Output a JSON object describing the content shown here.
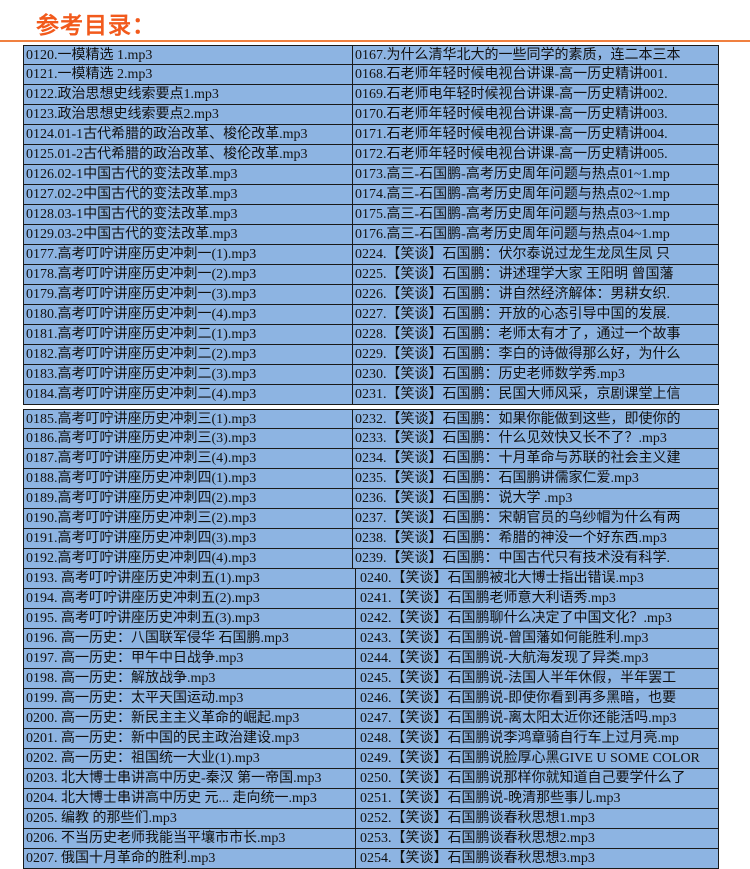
{
  "title": "参考目录：",
  "colors": {
    "cell_bg": "#8db4e2",
    "title": "#f25a1c"
  },
  "blocks": [
    {
      "left": [
        "0120.一模精选 1.mp3",
        "0121.一模精选 2.mp3",
        "0122.政治思想史线索要点1.mp3",
        "0123.政治思想史线索要点2.mp3",
        "0124.01-1古代希腊的政治改革、梭伦改革.mp3",
        "0125.01-2古代希腊的政治改革、梭伦改革.mp3",
        "0126.02-1中国古代的变法改革.mp3",
        "0127.02-2中国古代的变法改革.mp3",
        "0128.03-1中国古代的变法改革.mp3",
        "0129.03-2中国古代的变法改革.mp3",
        "0177.高考叮咛讲座历史冲刺一(1).mp3",
        "0178.高考叮咛讲座历史冲刺一(2).mp3",
        "0179.高考叮咛讲座历史冲刺一(3).mp3",
        "0180.高考叮咛讲座历史冲刺一(4).mp3",
        "0181.高考叮咛讲座历史冲刺二(1).mp3",
        "0182.高考叮咛讲座历史冲刺二(2).mp3",
        "0183.高考叮咛讲座历史冲刺二(3).mp3",
        "0184.高考叮咛讲座历史冲刺二(4).mp3"
      ],
      "right": [
        "0167.为什么清华北大的一些同学的素质，连二本三本",
        "0168.石老师年轻时候电视台讲课-高一历史精讲001.",
        "0169.石老师电年轻时候视台讲课-高一历史精讲002.",
        "0170.石老师年轻时候电视台讲课-高一历史精讲003.",
        "0171.石老师年轻时候电视台讲课-高一历史精讲004.",
        "0172.石老师年轻时候电视台讲课-高一历史精讲005.",
        "0173.高三-石国鹏-高考历史周年问题与热点01~1.mp",
        "0174.高三-石国鹏-高考历史周年问题与热点02~1.mp",
        "0175.高三-石国鹏-高考历史周年问题与热点03~1.mp",
        "0176.高三-石国鹏-高考历史周年问题与热点04~1.mp",
        "0224.【笑谈】石国鹏：伏尔泰说过龙生龙凤生凤 只",
        "0225.【笑谈】石国鹏：讲述理学大家 王阳明 曾国藩",
        "0226.【笑谈】石国鹏：讲自然经济解体：男耕女织.",
        "0227.【笑谈】石国鹏：开放的心态引导中国的发展.",
        "0228.【笑谈】石国鹏：老师太有才了，通过一个故事",
        "0229.【笑谈】石国鹏：李白的诗做得那么好，为什么",
        "0230.【笑谈】石国鹏：历史老师数学秀.mp3",
        "0231.【笑谈】石国鹏：民国大师风采，京剧课堂上信"
      ]
    },
    {
      "left": [
        "0185.高考叮咛讲座历史冲刺三(1).mp3",
        "0186.高考叮咛讲座历史冲刺三(3).mp3",
        "0187.高考叮咛讲座历史冲刺三(4).mp3",
        "0188.高考叮咛讲座历史冲刺四(1).mp3",
        "0189.高考叮咛讲座历史冲刺四(2).mp3",
        "0190.高考叮咛讲座历史冲刺三(2).mp3",
        "0191.高考叮咛讲座历史冲刺四(3).mp3",
        "0192.高考叮咛讲座历史冲刺四(4).mp3",
        "0193. 高考叮咛讲座历史冲刺五(1).mp3",
        "0194. 高考叮咛讲座历史冲刺五(2).mp3",
        "0195. 高考叮咛讲座历史冲刺五(3).mp3",
        "0196. 高一历史：八国联军侵华 石国鹏.mp3",
        "0197. 高一历史：甲午中日战争.mp3",
        "0198. 高一历史：解放战争.mp3",
        "0199. 高一历史：太平天国运动.mp3",
        "0200. 高一历史：新民主主义革命的崛起.mp3",
        "0201. 高一历史：新中国的民主政治建设.mp3",
        "0202. 高一历史：祖国统一大业(1).mp3",
        "0203. 北大博士串讲高中历史-秦汉 第一帝国.mp3",
        "0204. 北大博士串讲高中历史 元... 走向统一.mp3",
        "0205. 编教  的那些们.mp3",
        "0206. 不当历史老师我能当平壤市市长.mp3",
        "0207. 俄国十月革命的胜利.mp3"
      ],
      "right": [
        "0232.【笑谈】石国鹏：如果你能做到这些，即使你的",
        "0233.【笑谈】石国鹏：什么见效快又长不了？.mp3",
        "0234.【笑谈】石国鹏：十月革命与苏联的社会主义建",
        "0235.【笑谈】石国鹏：石国鹏讲儒家仁爱.mp3",
        "0236.【笑谈】石国鹏：说大学 .mp3",
        "0237.【笑谈】石国鹏：宋朝官员的乌纱帽为什么有两",
        "0238.【笑谈】石国鹏：希腊的神没一个好东西.mp3",
        "0239.【笑谈】石国鹏：中国古代只有技术没有科学.",
        "0240.【笑谈】石国鹏被北大博士指出错误.mp3",
        "0241.【笑谈】石国鹏老师意大利语秀.mp3",
        "0242.【笑谈】石国鹏聊什么决定了中国文化？.mp3",
        "0243.【笑谈】石国鹏说-曾国藩如何能胜利.mp3",
        "0244.【笑谈】石国鹏说-大航海发现了异类.mp3",
        "0245.【笑谈】石国鹏说-法国人半年休假，半年罢工",
        "0246.【笑谈】石国鹏说-即使你看到再多黑暗，也要",
        "0247.【笑谈】石国鹏说-离太阳太近你还能活吗.mp3",
        "0248.【笑谈】石国鹏说李鸿章骑自行车上过月亮.mp",
        "0249.【笑谈】石国鹏说脸厚心黑GIVE U SOME COLOR",
        "0250.【笑谈】石国鹏说那样你就知道自己要学什么了",
        "0251.【笑谈】石国鹏说-晚清那些事儿.mp3",
        "0252.【笑谈】石国鹏谈春秋思想1.mp3",
        "0253.【笑谈】石国鹏谈春秋思想2.mp3",
        "0254.【笑谈】石国鹏谈春秋思想3.mp3"
      ]
    }
  ]
}
